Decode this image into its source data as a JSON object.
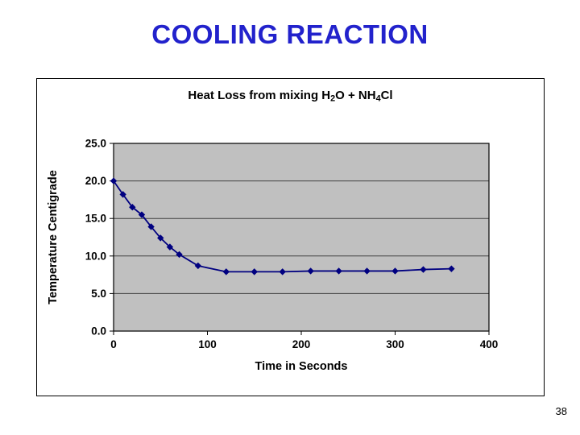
{
  "slide": {
    "title": "COOLING REACTION",
    "page_number": "38"
  },
  "colors": {
    "title": "#2222CC",
    "series": "#000080",
    "plot_bg": "#C0C0C0",
    "gridline": "#3F3F3F",
    "axis": "#000000",
    "text": "#000000"
  },
  "chart_data": {
    "type": "line",
    "title": "Heat Loss from mixing H2O + NH4Cl",
    "title_parts": [
      {
        "text": "Heat Loss from mixing H"
      },
      {
        "text": "2",
        "sub": true
      },
      {
        "text": "O + NH"
      },
      {
        "text": "4",
        "sub": true
      },
      {
        "text": "Cl"
      }
    ],
    "xlabel": "Time in Seconds",
    "ylabel": "Temperature Centigrade",
    "xlim": [
      0,
      400
    ],
    "ylim": [
      0,
      25
    ],
    "xticks": [
      0,
      100,
      200,
      300,
      400
    ],
    "xtick_labels": [
      "0",
      "100",
      "200",
      "300",
      "400"
    ],
    "yticks": [
      0,
      5,
      10,
      15,
      20,
      25
    ],
    "ytick_labels": [
      "0.0",
      "5.0",
      "10.0",
      "15.0",
      "20.0",
      "25.0"
    ],
    "grid": true,
    "legend": "none",
    "marker": "diamond",
    "series": [
      {
        "name": "Temperature",
        "x": [
          0,
          10,
          20,
          30,
          40,
          50,
          60,
          70,
          90,
          120,
          150,
          180,
          210,
          240,
          270,
          300,
          330,
          360
        ],
        "y": [
          20.0,
          18.2,
          16.5,
          15.5,
          13.9,
          12.4,
          11.2,
          10.2,
          8.7,
          7.9,
          7.9,
          7.9,
          8.0,
          8.0,
          8.0,
          8.0,
          8.2,
          8.3
        ]
      }
    ]
  }
}
